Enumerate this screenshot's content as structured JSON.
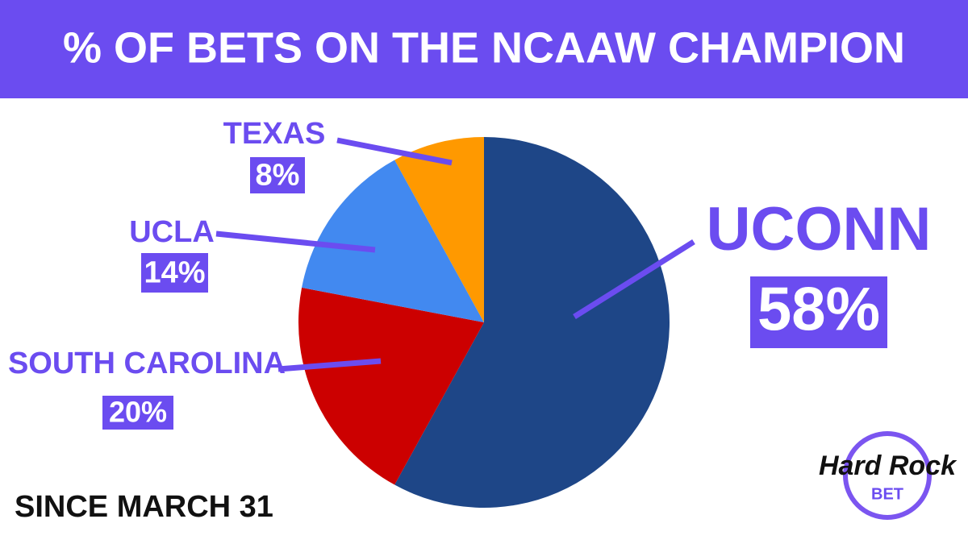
{
  "chart_data": {
    "type": "pie",
    "title": "% OF BETS ON THE NCAAW CHAMPION",
    "annotation": "SINCE MARCH 31",
    "categories": [
      "UCONN",
      "SOUTH CAROLINA",
      "UCLA",
      "TEXAS"
    ],
    "values": [
      58,
      20,
      14,
      8
    ],
    "value_labels": [
      "58%",
      "20%",
      "14%",
      "8%"
    ],
    "colors": [
      "#1e4687",
      "#cc0000",
      "#4289f0",
      "#ff9900"
    ]
  },
  "logo": {
    "name": "Hard Rock",
    "sub": "BET"
  }
}
